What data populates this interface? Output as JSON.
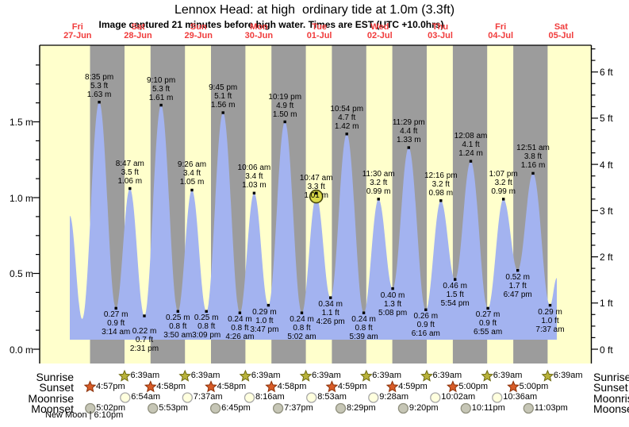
{
  "title": "Lennox Head: at high  ordinary tide at 1.0m (3.3ft)",
  "subtitle": "Image captured 21 minutes before high water. Times are EST (UTC +10.0hrs)",
  "days": [
    {
      "name": "Fri",
      "date": "27-Jun"
    },
    {
      "name": "Sat",
      "date": "28-Jun"
    },
    {
      "name": "Sun",
      "date": "29-Jun"
    },
    {
      "name": "Mon",
      "date": "30-Jun"
    },
    {
      "name": "Tue",
      "date": "01-Jul"
    },
    {
      "name": "Wed",
      "date": "02-Jul"
    },
    {
      "name": "Thu",
      "date": "03-Jul"
    },
    {
      "name": "Fri",
      "date": "04-Jul"
    },
    {
      "name": "Sat",
      "date": "05-Jul"
    }
  ],
  "y_axis_left": {
    "unit": "m",
    "tick_labels": [
      "0.0 m",
      "0.5 m",
      "1.0 m",
      "1.5 m"
    ],
    "tick_values": [
      0.0,
      0.5,
      1.0,
      1.5
    ]
  },
  "y_axis_right": {
    "unit": "ft",
    "tick_labels": [
      "0 ft",
      "1 ft",
      "2 ft",
      "3 ft",
      "4 ft",
      "5 ft",
      "6 ft"
    ],
    "tick_values": [
      0,
      1,
      2,
      3,
      4,
      5,
      6
    ]
  },
  "chart_data": {
    "type": "area",
    "title": "Lennox Head: at high  ordinary tide at 1.0m (3.3ft)",
    "x_axis": "days Fri 27-Jun through Sat 05-Jul, shaded gray at night (sunset to sunrise)",
    "ylim_m": [
      0,
      2.08
    ],
    "ylim_ft": [
      0,
      6.5
    ],
    "series": [
      {
        "name": "tide height",
        "points": [
          {
            "day": 0,
            "hour": 8.92,
            "m": 0.88,
            "kind": "clip-start",
            "annotated": false
          },
          {
            "day": 0,
            "hour": 13.83,
            "m": 0.2,
            "kind": "low",
            "annotated": false
          },
          {
            "day": 0,
            "hour": 20.583,
            "m": 1.63,
            "kind": "high",
            "annotated": true,
            "labels": [
              "8:35 pm",
              "5.3 ft",
              "1.63 m"
            ]
          },
          {
            "day": 1,
            "hour": 3.233,
            "m": 0.27,
            "kind": "low",
            "annotated": true,
            "labels": [
              "0.27 m",
              "0.9 ft",
              "3:14 am"
            ]
          },
          {
            "day": 1,
            "hour": 8.783,
            "m": 1.06,
            "kind": "high",
            "annotated": true,
            "labels": [
              "8:47 am",
              "3.5 ft",
              "1.06 m"
            ]
          },
          {
            "day": 1,
            "hour": 14.517,
            "m": 0.22,
            "kind": "low",
            "annotated": true,
            "labels": [
              "0.22 m",
              "0.7 ft",
              "2:31 pm"
            ],
            "dy": 11
          },
          {
            "day": 1,
            "hour": 21.167,
            "m": 1.61,
            "kind": "high",
            "annotated": true,
            "labels": [
              "9:10 pm",
              "5.3 ft",
              "1.61 m"
            ]
          },
          {
            "day": 2,
            "hour": 3.833,
            "m": 0.25,
            "kind": "low",
            "annotated": true,
            "labels": [
              "0.25 m",
              "0.8 ft",
              "3:50 am"
            ]
          },
          {
            "day": 2,
            "hour": 9.433,
            "m": 1.05,
            "kind": "high",
            "annotated": true,
            "labels": [
              "9:26 am",
              "3.4 ft",
              "1.05 m"
            ]
          },
          {
            "day": 2,
            "hour": 15.15,
            "m": 0.25,
            "kind": "low",
            "annotated": true,
            "labels": [
              "0.25 m",
              "0.8 ft",
              "3:09 pm"
            ]
          },
          {
            "day": 2,
            "hour": 21.75,
            "m": 1.56,
            "kind": "high",
            "annotated": true,
            "labels": [
              "9:45 pm",
              "5.1 ft",
              "1.56 m"
            ]
          },
          {
            "day": 3,
            "hour": 4.433,
            "m": 0.24,
            "kind": "low",
            "annotated": true,
            "labels": [
              "0.24 m",
              "0.8 ft",
              "4:26 am"
            ]
          },
          {
            "day": 3,
            "hour": 10.1,
            "m": 1.03,
            "kind": "high",
            "annotated": true,
            "labels": [
              "10:06 am",
              "3.4 ft",
              "1.03 m"
            ]
          },
          {
            "day": 3,
            "hour": 15.783,
            "m": 0.29,
            "kind": "low",
            "annotated": true,
            "labels": [
              "0.29 m",
              "1.0 ft",
              "3:47 pm"
            ],
            "dx": -5
          },
          {
            "day": 3,
            "hour": 22.317,
            "m": 1.5,
            "kind": "high",
            "annotated": true,
            "labels": [
              "10:19 pm",
              "4.9 ft",
              "1.50 m"
            ]
          },
          {
            "day": 4,
            "hour": 5.033,
            "m": 0.24,
            "kind": "low",
            "annotated": true,
            "labels": [
              "0.24 m",
              "0.8 ft",
              "5:02 am"
            ]
          },
          {
            "day": 4,
            "hour": 10.783,
            "m": 1.01,
            "kind": "high",
            "annotated": true,
            "current": true,
            "labels": [
              "10:47 am",
              "3.3 ft",
              "1.01 m"
            ],
            "dy": 9
          },
          {
            "day": 4,
            "hour": 16.433,
            "m": 0.34,
            "kind": "low",
            "annotated": true,
            "labels": [
              "0.34 m",
              "1.1 ft",
              "4:26 pm"
            ]
          },
          {
            "day": 4,
            "hour": 22.9,
            "m": 1.42,
            "kind": "high",
            "annotated": true,
            "labels": [
              "10:54 pm",
              "4.7 ft",
              "1.42 m"
            ]
          },
          {
            "day": 5,
            "hour": 5.65,
            "m": 0.24,
            "kind": "low",
            "annotated": true,
            "labels": [
              "0.24 m",
              "0.8 ft",
              "5:39 am"
            ]
          },
          {
            "day": 5,
            "hour": 11.5,
            "m": 0.99,
            "kind": "high",
            "annotated": true,
            "labels": [
              "11:30 am",
              "3.2 ft",
              "0.99 m"
            ]
          },
          {
            "day": 5,
            "hour": 17.133,
            "m": 0.4,
            "kind": "low",
            "annotated": true,
            "labels": [
              "0.40 m",
              "1.3 ft",
              "5:08 pm"
            ]
          },
          {
            "day": 5,
            "hour": 23.483,
            "m": 1.33,
            "kind": "high",
            "annotated": true,
            "labels": [
              "11:29 pm",
              "4.4 ft",
              "1.33 m"
            ]
          },
          {
            "day": 6,
            "hour": 6.267,
            "m": 0.26,
            "kind": "low",
            "annotated": true,
            "labels": [
              "0.26 m",
              "0.9 ft",
              "6:16 am"
            ]
          },
          {
            "day": 6,
            "hour": 12.267,
            "m": 0.98,
            "kind": "high",
            "annotated": true,
            "labels": [
              "12:16 pm",
              "3.2 ft",
              "0.98 m"
            ]
          },
          {
            "day": 6,
            "hour": 17.9,
            "m": 0.46,
            "kind": "low",
            "annotated": true,
            "labels": [
              "0.46 m",
              "1.5 ft",
              "5:54 pm"
            ]
          },
          {
            "day": 7,
            "hour": 0.133,
            "m": 1.24,
            "kind": "high",
            "annotated": true,
            "labels": [
              "12:08 am",
              "4.1 ft",
              "1.24 m"
            ]
          },
          {
            "day": 7,
            "hour": 6.917,
            "m": 0.27,
            "kind": "low",
            "annotated": true,
            "labels": [
              "0.27 m",
              "0.9 ft",
              "6:55 am"
            ]
          },
          {
            "day": 7,
            "hour": 13.117,
            "m": 0.99,
            "kind": "high",
            "annotated": true,
            "labels": [
              "1:07 pm",
              "3.2 ft",
              "0.99 m"
            ]
          },
          {
            "day": 7,
            "hour": 18.783,
            "m": 0.52,
            "kind": "low",
            "annotated": true,
            "labels": [
              "0.52 m",
              "1.7 ft",
              "6:47 pm"
            ]
          },
          {
            "day": 8,
            "hour": 0.85,
            "m": 1.16,
            "kind": "high",
            "annotated": true,
            "labels": [
              "12:51 am",
              "3.8 ft",
              "1.16 m"
            ]
          },
          {
            "day": 8,
            "hour": 7.617,
            "m": 0.29,
            "kind": "low",
            "annotated": true,
            "labels": [
              "0.29 m",
              "1.0 ft",
              "7:37 am"
            ]
          },
          {
            "day": 8,
            "hour": 10.3,
            "m": 0.47,
            "kind": "clip-end",
            "annotated": false
          }
        ]
      }
    ]
  },
  "astro": {
    "rows": [
      {
        "label": "Sunrise",
        "icon": "sunrise-star-icon",
        "events": [
          {
            "day": 1,
            "time": "6:39am"
          },
          {
            "day": 2,
            "time": "6:39am"
          },
          {
            "day": 3,
            "time": "6:39am"
          },
          {
            "day": 4,
            "time": "6:39am"
          },
          {
            "day": 5,
            "time": "6:39am"
          },
          {
            "day": 6,
            "time": "6:39am"
          },
          {
            "day": 7,
            "time": "6:39am"
          },
          {
            "day": 8,
            "time": "6:39am"
          }
        ]
      },
      {
        "label": "Sunset",
        "icon": "sunset-star-icon",
        "events": [
          {
            "day": 0,
            "time": "4:57pm"
          },
          {
            "day": 1,
            "time": "4:58pm"
          },
          {
            "day": 2,
            "time": "4:58pm"
          },
          {
            "day": 3,
            "time": "4:58pm"
          },
          {
            "day": 4,
            "time": "4:59pm"
          },
          {
            "day": 5,
            "time": "4:59pm"
          },
          {
            "day": 6,
            "time": "5:00pm"
          },
          {
            "day": 7,
            "time": "5:00pm"
          }
        ]
      },
      {
        "label": "Moonrise",
        "icon": "moonrise-circle-icon",
        "events": [
          {
            "day": 1,
            "time": "6:54am"
          },
          {
            "day": 2,
            "time": "7:37am"
          },
          {
            "day": 3,
            "time": "8:16am"
          },
          {
            "day": 4,
            "time": "8:53am"
          },
          {
            "day": 5,
            "time": "9:28am"
          },
          {
            "day": 6,
            "time": "10:02am"
          },
          {
            "day": 7,
            "time": "10:36am"
          }
        ]
      },
      {
        "label": "Moonset",
        "icon": "moonset-circle-icon",
        "events": [
          {
            "day": 0,
            "time": "5:02pm"
          },
          {
            "day": 1,
            "time": "5:53pm"
          },
          {
            "day": 2,
            "time": "6:45pm"
          },
          {
            "day": 3,
            "time": "7:37pm"
          },
          {
            "day": 4,
            "time": "8:29pm"
          },
          {
            "day": 5,
            "time": "9:20pm"
          },
          {
            "day": 6,
            "time": "10:11pm"
          },
          {
            "day": 7,
            "time": "11:03pm"
          }
        ]
      }
    ]
  },
  "new_moon": "New Moon | 6:10pm",
  "colors": {
    "day_band": "#FFFFCC",
    "night_band": "#9C9C9C",
    "tide_fill": "#A3B3F0",
    "day_label_red": "#F03B3B",
    "current_marker": "#D9D947",
    "sunrise_star": "#B8B23A",
    "sunset_star": "#D85C28",
    "moonrise_circle": "#FFFFDE",
    "moonset_circle": "#C6C6B6"
  }
}
